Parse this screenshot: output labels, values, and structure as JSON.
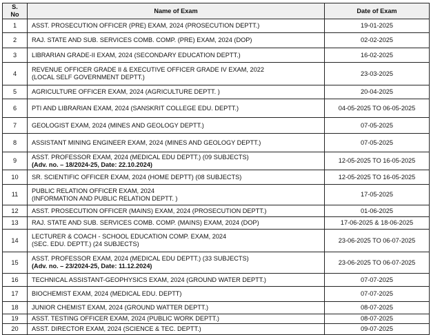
{
  "headers": {
    "sno": "S. No",
    "name": "Name of Exam",
    "date": "Date of Exam"
  },
  "rows": [
    {
      "sno": "1",
      "name": "ASST. PROSECUTION OFFICER (PRE) EXAM, 2024 (PROSECUTION DEPTT.)",
      "line2": "",
      "adv": "",
      "date": "19-01-2025"
    },
    {
      "sno": "2",
      "name": "RAJ. STATE AND SUB. SERVICES COMB. COMP. (PRE) EXAM, 2024 (DOP)",
      "line2": "",
      "adv": "",
      "date": "02-02-2025"
    },
    {
      "sno": "3",
      "name": "LIBRARIAN GRADE-II EXAM, 2024 (SECONDARY EDUCATION DEPTT.)",
      "line2": "",
      "adv": "",
      "date": "16-02-2025"
    },
    {
      "sno": "4",
      "name": "REVENUE OFFICER GRADE II & EXECUTIVE OFFICER GRADE IV EXAM, 2022",
      "line2": "(LOCAL SELF GOVERNMENT DEPTT.)",
      "adv": "",
      "date": "23-03-2025"
    },
    {
      "sno": "5",
      "name": "AGRICULTURE OFFICER EXAM, 2024 (AGRICULTURE DEPTT. )",
      "line2": "",
      "adv": "",
      "date": "20-04-2025"
    },
    {
      "sno": "6",
      "name": "PTI AND LIBRARIAN EXAM, 2024 (SANSKRIT COLLEGE EDU. DEPTT.)",
      "line2": "",
      "adv": "",
      "date": "04-05-2025 TO 06-05-2025"
    },
    {
      "sno": "7",
      "name": "GEOLOGIST  EXAM, 2024 (MINES AND GEOLOGY DEPTT.)",
      "line2": "",
      "adv": "",
      "date": "07-05-2025"
    },
    {
      "sno": "8",
      "name": "ASSISTANT MINING ENGINEER EXAM, 2024 (MINES AND GEOLOGY DEPTT.)",
      "line2": "",
      "adv": "",
      "date": "07-05-2025"
    },
    {
      "sno": "9",
      "name": "ASST. PROFESSOR EXAM, 2024 (MEDICAL EDU DEPTT.)  (09 SUBJECTS)",
      "line2": "",
      "adv": "(Adv. no. – 18/2024-25, Date: 22.10.2024)",
      "date": "12-05-2025 TO 16-05-2025"
    },
    {
      "sno": "10",
      "name": "SR. SCIENTIFIC OFFICER EXAM, 2024  (HOME DEPTT) (08 SUBJECTS)",
      "line2": "",
      "adv": "",
      "date": "12-05-2025 TO 16-05-2025"
    },
    {
      "sno": "11",
      "name": "PUBLIC RELATION OFFICER EXAM, 2024",
      "line2": "(INFORMATION AND PUBLIC RELATION DEPTT. )",
      "adv": "",
      "date": "17-05-2025"
    },
    {
      "sno": "12",
      "name": "ASST. PROSECUTION OFFICER (MAINS) EXAM, 2024 (PROSECUTION DEPTT.)",
      "line2": "",
      "adv": "",
      "date": "01-06-2025"
    },
    {
      "sno": "13",
      "name": "RAJ. STATE AND SUB. SERVICES COMB. COMP. (MAINS) EXAM, 2024 (DOP)",
      "line2": "",
      "adv": "",
      "date": "17-06-2025 & 18-06-2025"
    },
    {
      "sno": "14",
      "name": "LECTURER & COACH - SCHOOL EDUCATION COMP. EXAM, 2024",
      "line2": "(SEC. EDU. DEPTT.) (24 SUBJECTS)",
      "adv": "",
      "date": "23-06-2025 TO 06-07-2025"
    },
    {
      "sno": "15",
      "name": "ASST. PROFESSOR EXAM, 2024 (MEDICAL EDU DEPTT.) (33 SUBJECTS)",
      "line2": "",
      "adv": "(Adv. no. – 23/2024-25, Date: 11.12.2024)",
      "date": "23-06-2025 TO 06-07-2025"
    },
    {
      "sno": "16",
      "name": "TECHNICAL ASSISTANT-GEOPHYSICS EXAM, 2024 (GROUND WATER DEPTT.)",
      "line2": "",
      "adv": "",
      "date": "07-07-2025"
    },
    {
      "sno": "17",
      "name": "BIOCHEMIST EXAM, 2024 (MEDICAL EDU. DEPTT)",
      "line2": "",
      "adv": "",
      "date": "07-07-2025"
    },
    {
      "sno": "18",
      "name": "JUNIOR CHEMIST EXAM, 2024  (GROUND WATTER DEPTT.)",
      "line2": "",
      "adv": "",
      "date": "08-07-2025"
    },
    {
      "sno": "19",
      "name": "ASST. TESTING OFFICER EXAM, 2024  (PUBLIC WORK DEPTT.)",
      "line2": "",
      "adv": "",
      "date": "08-07-2025"
    },
    {
      "sno": "20",
      "name": "ASST. DIRECTOR  EXAM, 2024 (SCIENCE & TEC. DEPTT.)",
      "line2": "",
      "adv": "",
      "date": "09-07-2025"
    }
  ]
}
